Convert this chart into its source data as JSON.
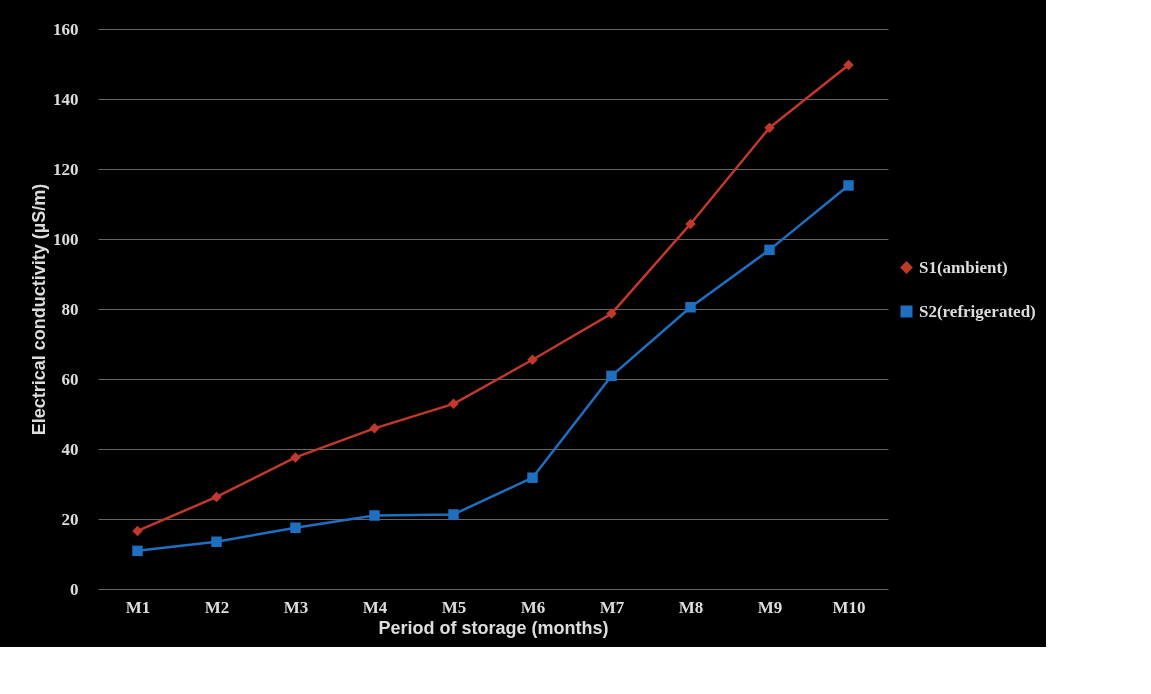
{
  "chart_data": {
    "type": "line",
    "xlabel": "Period  of storage (months)",
    "ylabel": "Electrical conductivity (µS/m)",
    "categories": [
      "M1",
      "M2",
      "M3",
      "M4",
      "M5",
      "M6",
      "M7",
      "M8",
      "M9",
      "M10"
    ],
    "series": [
      {
        "name": "S1(ambient)",
        "color": "#c0392b",
        "marker": "diamond",
        "values": [
          16.6,
          26.3,
          37.6,
          45.9,
          52.9,
          65.5,
          78.7,
          104.3,
          131.8,
          149.7
        ]
      },
      {
        "name": "S2(refrigerated)",
        "color": "#1f6fc1",
        "marker": "square",
        "values": [
          10.9,
          13.5,
          17.5,
          21.0,
          21.3,
          31.8,
          60.9,
          80.5,
          96.9,
          115.3
        ]
      }
    ],
    "ylim": [
      0,
      160
    ],
    "yticks": [
      0,
      20,
      40,
      60,
      80,
      100,
      120,
      140,
      160
    ],
    "grid": "y",
    "legend": "right"
  }
}
